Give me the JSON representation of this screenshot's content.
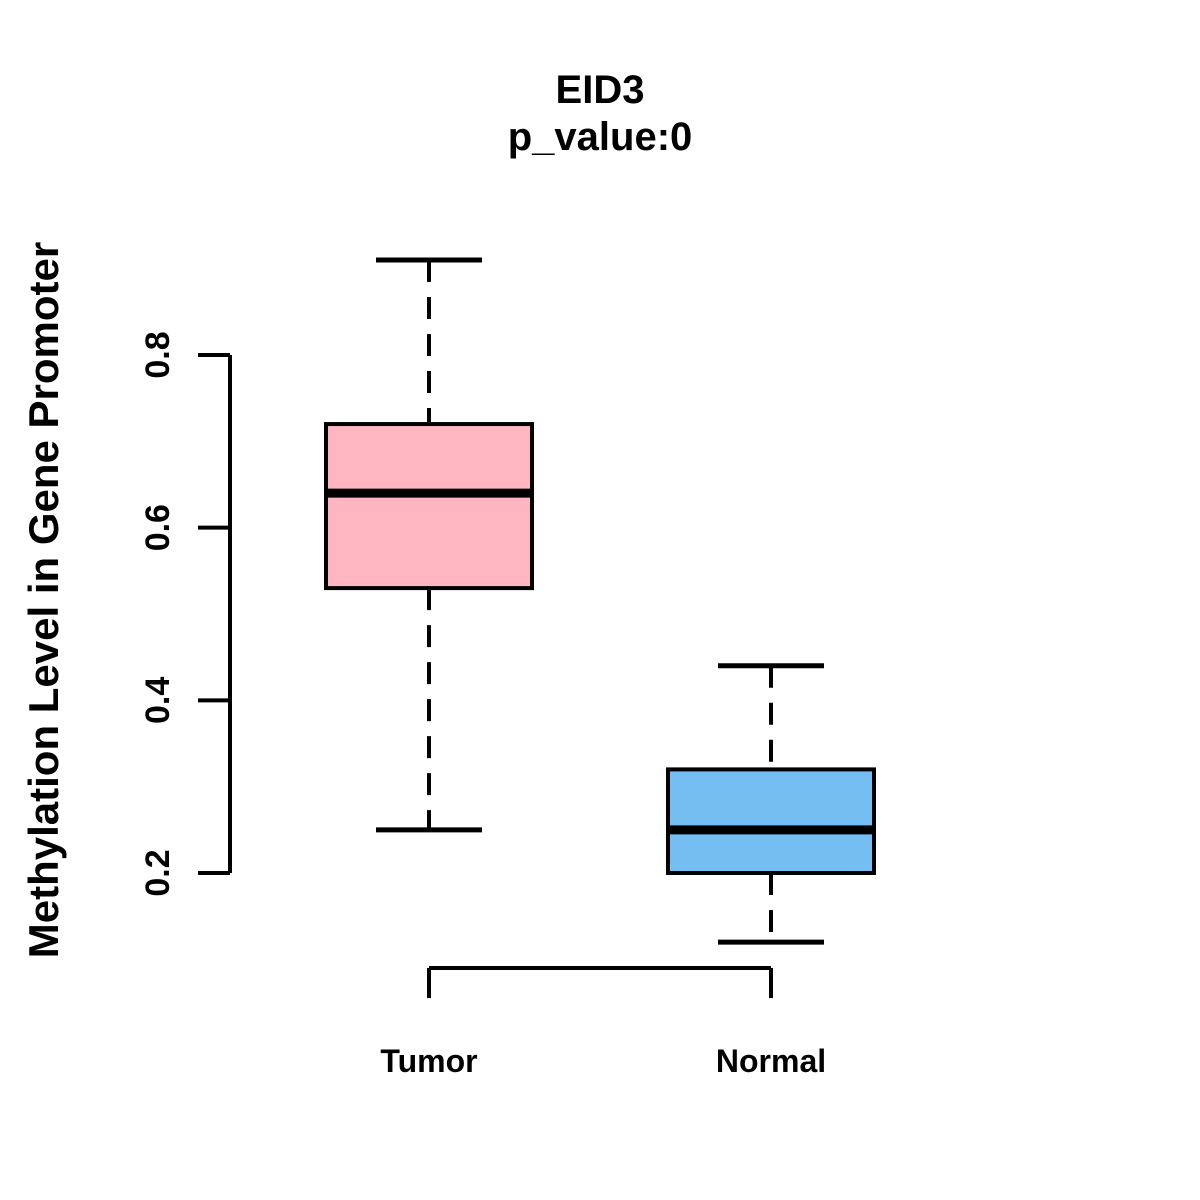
{
  "figure": {
    "background": "#FFFFFF",
    "foreground": "#000000"
  },
  "chart_data": {
    "type": "boxplot",
    "title": "EID3",
    "subtitle": "p_value:0",
    "ylabel": "Methylation Level in Gene Promoter",
    "xlabel": "",
    "categories": [
      "Tumor",
      "Normal"
    ],
    "y_ticks": [
      0.2,
      0.4,
      0.6,
      0.8
    ],
    "y_axis_line_range": [
      0.2,
      0.8
    ],
    "grid": false,
    "legend": "none",
    "whisker_style": "dashed",
    "series": [
      {
        "name": "Tumor",
        "lower_whisker": 0.25,
        "q1": 0.53,
        "median": 0.64,
        "q3": 0.72,
        "upper_whisker": 0.91,
        "fill_color": "#FFB6C1",
        "border_color": "#000000"
      },
      {
        "name": "Normal",
        "lower_whisker": 0.12,
        "q1": 0.2,
        "median": 0.25,
        "q3": 0.32,
        "upper_whisker": 0.44,
        "fill_color": "#74BEF2",
        "border_color": "#000000"
      }
    ]
  }
}
